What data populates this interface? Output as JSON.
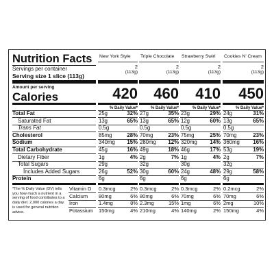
{
  "title": "Nutrition Facts",
  "servings_label": "Servings per container",
  "serving_size_label": "Serving size",
  "serving_size_value": "1 slice (113g)",
  "amount_label": "Amount per serving",
  "calories_label": "Calories",
  "dv_header": "% Daily Value*",
  "nutrients": [
    "Total Fat",
    "Saturated Fat",
    "Trans Fat",
    "Cholesterol",
    "Sodium",
    "Total Carbohydrate",
    "Dietary Fiber",
    "Total Sugars",
    "Includes Added Sugars",
    "Protein"
  ],
  "vitamins": [
    "Vitamin D",
    "Calcium",
    "Iron",
    "Potassium"
  ],
  "footnote": "*The % Daily Value (DV) tells you how much a nutrient in a serving of food contributes to a daily diet. 2,000 calories a day is used for general nutrition advice.",
  "products": [
    {
      "name": "New York Style",
      "servings": 2,
      "serving_size": "(113g)",
      "calories": 420,
      "nutrients": [
        [
          "25g",
          "32%"
        ],
        [
          "13g",
          "65%"
        ],
        [
          "0.5g",
          null
        ],
        [
          "85mg",
          "28%"
        ],
        [
          "340mg",
          "15%"
        ],
        [
          "45g",
          "16%"
        ],
        [
          "1g",
          "4%"
        ],
        [
          "29g",
          null
        ],
        [
          "26g",
          "52%"
        ],
        [
          "6g",
          null
        ]
      ],
      "vitamins": [
        [
          "0.3mcg",
          "2%"
        ],
        [
          "80mg",
          "6%"
        ],
        [
          "1.4mg",
          "8%"
        ],
        [
          "150mg",
          "4%"
        ]
      ]
    },
    {
      "name": "Triple Chocolate",
      "servings": 2,
      "serving_size": "(113g)",
      "calories": 460,
      "nutrients": [
        [
          "27g",
          "35%"
        ],
        [
          "13g",
          "65%"
        ],
        [
          "0.5g",
          null
        ],
        [
          "70mg",
          "23%"
        ],
        [
          "280mg",
          "12%"
        ],
        [
          "49g",
          "18%"
        ],
        [
          "2g",
          "7%"
        ],
        [
          "32g",
          null
        ],
        [
          "30g",
          "60%"
        ],
        [
          "6g",
          null
        ]
      ],
      "vitamins": [
        [
          "0.3mcg",
          "2%"
        ],
        [
          "80mg",
          "6%"
        ],
        [
          "2.3mg",
          "15%"
        ],
        [
          "210mg",
          "4%"
        ]
      ]
    },
    {
      "name": "Strawberry Swirl",
      "servings": 2,
      "serving_size": "(113g)",
      "calories": 410,
      "nutrients": [
        [
          "23g",
          "29%"
        ],
        [
          "12g",
          "60%"
        ],
        [
          "0.5g",
          null
        ],
        [
          "75mg",
          "25%"
        ],
        [
          "320mg",
          "14%"
        ],
        [
          "46g",
          "17%"
        ],
        [
          "1g",
          "4%"
        ],
        [
          "30g",
          null
        ],
        [
          "24g",
          "48%"
        ],
        [
          "6g",
          null
        ]
      ],
      "vitamins": [
        [
          "0.3mcg",
          "2%"
        ],
        [
          "70mg",
          "6%"
        ],
        [
          "1mg",
          "6%"
        ],
        [
          "140mg",
          "2%"
        ]
      ]
    },
    {
      "name": "Cookies N' Cream",
      "servings": 2,
      "serving_size": "(113g)",
      "calories": 450,
      "nutrients": [
        [
          "24g",
          "31%"
        ],
        [
          "13g",
          "65%"
        ],
        [
          "0.5g",
          null
        ],
        [
          "70mg",
          "23%"
        ],
        [
          "360mg",
          "16%"
        ],
        [
          "53g",
          "19%"
        ],
        [
          "2g",
          "7%"
        ],
        [
          "32g",
          null
        ],
        [
          "29g",
          "58%"
        ],
        [
          "6g",
          null
        ]
      ],
      "vitamins": [
        [
          "0.2mcg",
          "2%"
        ],
        [
          "70mg",
          "6%"
        ],
        [
          "2mg",
          "10%"
        ],
        [
          "150mg",
          "4%"
        ]
      ]
    }
  ]
}
